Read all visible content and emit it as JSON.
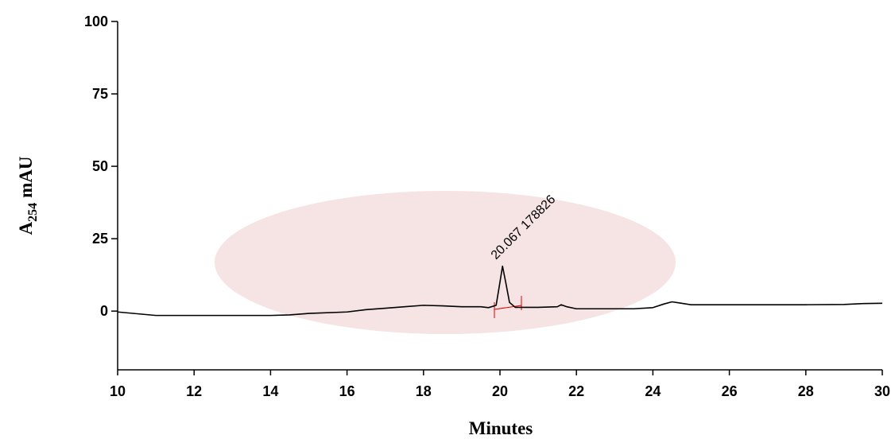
{
  "chart_data": {
    "type": "line",
    "xlabel": "Minutes",
    "ylabel_parts": [
      "A",
      "254",
      "mAU"
    ],
    "annotation": "20.067  178826",
    "color": "#000000",
    "x": [
      10,
      11,
      12,
      13,
      14,
      14.5,
      15,
      16,
      16.5,
      17,
      17.5,
      18,
      18.5,
      19,
      19.5,
      19.7,
      19.9,
      20.0,
      20.067,
      20.15,
      20.25,
      20.4,
      20.6,
      21,
      21.5,
      21.6,
      21.75,
      22,
      22.5,
      23,
      23.5,
      24,
      24.3,
      24.5,
      24.7,
      25,
      26,
      27,
      28,
      29,
      29.5,
      30
    ],
    "values": [
      -0.3,
      -1.5,
      -1.5,
      -1.5,
      -1.5,
      -1.3,
      -0.8,
      -0.3,
      0.5,
      1,
      1.5,
      2,
      1.8,
      1.5,
      1.5,
      1.2,
      2,
      10,
      15.5,
      10,
      3,
      1.3,
      1.3,
      1.3,
      1.5,
      2.2,
      1.5,
      0.8,
      0.8,
      0.8,
      0.8,
      1.2,
      2.5,
      3.2,
      2.8,
      2.2,
      2.2,
      2.2,
      2.2,
      2.3,
      2.6,
      2.7
    ],
    "xlim": [
      10,
      30
    ],
    "xticks": [
      10,
      12,
      14,
      16,
      18,
      20,
      22,
      24,
      26,
      28,
      30
    ],
    "ylim": [
      -20,
      100
    ],
    "yticks": [
      0,
      25,
      50,
      75,
      100
    ]
  }
}
